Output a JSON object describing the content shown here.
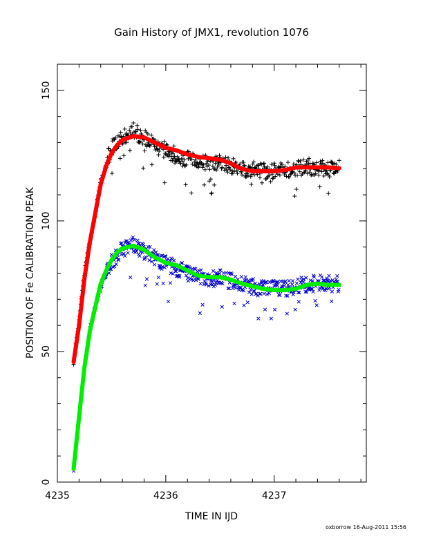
{
  "chart_data": {
    "type": "scatter",
    "title": "Gain History of JMX1, revolution 1076",
    "xlabel": "TIME IN IJD",
    "ylabel": "POSITION OF Fe CALIBRATION PEAK",
    "xlim": [
      4235.0,
      4237.85
    ],
    "ylim": [
      0,
      160
    ],
    "xticks": [
      4235,
      4236,
      4237
    ],
    "xtick_labels": [
      "4235",
      "4236",
      "4237"
    ],
    "yticks": [
      0,
      50,
      100,
      150
    ],
    "ytick_labels": [
      "0",
      "50",
      "100",
      "150"
    ],
    "grid": false,
    "footer": "oxborrow 16-Aug-2011 15:56",
    "series": [
      {
        "marker": "plus",
        "color": "#000000",
        "x": [
          4235.15,
          4235.2,
          4235.25,
          4235.3,
          4235.35,
          4235.4,
          4235.45,
          4235.5,
          4235.55,
          4235.6,
          4235.65,
          4235.7,
          4235.75,
          4235.8,
          4235.85,
          4235.9,
          4235.95,
          4236.0,
          4236.05,
          4236.1,
          4236.15,
          4236.2,
          4236.3,
          4236.4,
          4236.5,
          4236.6,
          4236.7,
          4236.8,
          4236.9,
          4237.0,
          4237.1,
          4237.2,
          4237.3,
          4237.4,
          4237.5,
          4237.6
        ],
        "y": [
          46,
          62,
          80,
          92,
          103,
          115,
          122,
          128,
          130,
          132,
          133,
          135,
          133,
          132,
          131,
          129,
          128,
          127,
          126,
          125,
          124,
          124,
          123,
          122,
          122,
          121,
          120,
          120,
          119,
          119,
          120,
          120,
          121,
          120,
          120,
          120
        ]
      },
      {
        "marker": "curve",
        "color": "#ff0000",
        "x": [
          4235.15,
          4235.2,
          4235.25,
          4235.3,
          4235.35,
          4235.4,
          4235.45,
          4235.5,
          4235.55,
          4235.6,
          4235.7,
          4235.8,
          4235.9,
          4236.0,
          4236.1,
          4236.2,
          4236.3,
          4236.4,
          4236.5,
          4236.6,
          4236.7,
          4236.8,
          4236.9,
          4237.0,
          4237.1,
          4237.2,
          4237.3,
          4237.4,
          4237.5,
          4237.6
        ],
        "y": [
          46,
          60,
          78,
          92,
          103,
          114,
          121,
          126,
          129,
          131,
          132.5,
          132,
          130,
          128,
          127,
          125.5,
          124.5,
          124,
          123.5,
          122,
          120,
          119,
          119,
          119,
          119.5,
          120.5,
          120.5,
          120.5,
          120.5,
          120.2
        ]
      },
      {
        "marker": "x",
        "color": "#0000cc",
        "x": [
          4235.15,
          4235.2,
          4235.25,
          4235.3,
          4235.35,
          4235.4,
          4235.45,
          4235.5,
          4235.55,
          4235.6,
          4235.65,
          4235.7,
          4235.75,
          4235.8,
          4235.85,
          4235.9,
          4235.95,
          4236.0,
          4236.05,
          4236.1,
          4236.15,
          4236.2,
          4236.3,
          4236.4,
          4236.5,
          4236.6,
          4236.7,
          4236.8,
          4236.9,
          4237.0,
          4237.1,
          4237.2,
          4237.3,
          4237.4,
          4237.5,
          4237.6
        ],
        "y": [
          5,
          25,
          44,
          58,
          67,
          75,
          80,
          84,
          87,
          89,
          90,
          91,
          89,
          88,
          87,
          86,
          85,
          84,
          83,
          82,
          81,
          80,
          79,
          78,
          78,
          77,
          76,
          75,
          74,
          74,
          74,
          75,
          76,
          76,
          76,
          76
        ]
      },
      {
        "marker": "curve",
        "color": "#00ee00",
        "x": [
          4235.15,
          4235.2,
          4235.25,
          4235.3,
          4235.35,
          4235.4,
          4235.45,
          4235.5,
          4235.55,
          4235.6,
          4235.7,
          4235.8,
          4235.9,
          4236.0,
          4236.1,
          4236.2,
          4236.3,
          4236.4,
          4236.5,
          4236.6,
          4236.7,
          4236.8,
          4236.9,
          4237.0,
          4237.1,
          4237.2,
          4237.3,
          4237.4,
          4237.5,
          4237.6
        ],
        "y": [
          5,
          25,
          44,
          58,
          67,
          76,
          81,
          85,
          88,
          89.5,
          90.5,
          89,
          86,
          84,
          83,
          81,
          79,
          78.5,
          78.5,
          77.5,
          76,
          75,
          74,
          73.5,
          73.5,
          74,
          75.5,
          76,
          75.5,
          75.5
        ]
      }
    ]
  }
}
